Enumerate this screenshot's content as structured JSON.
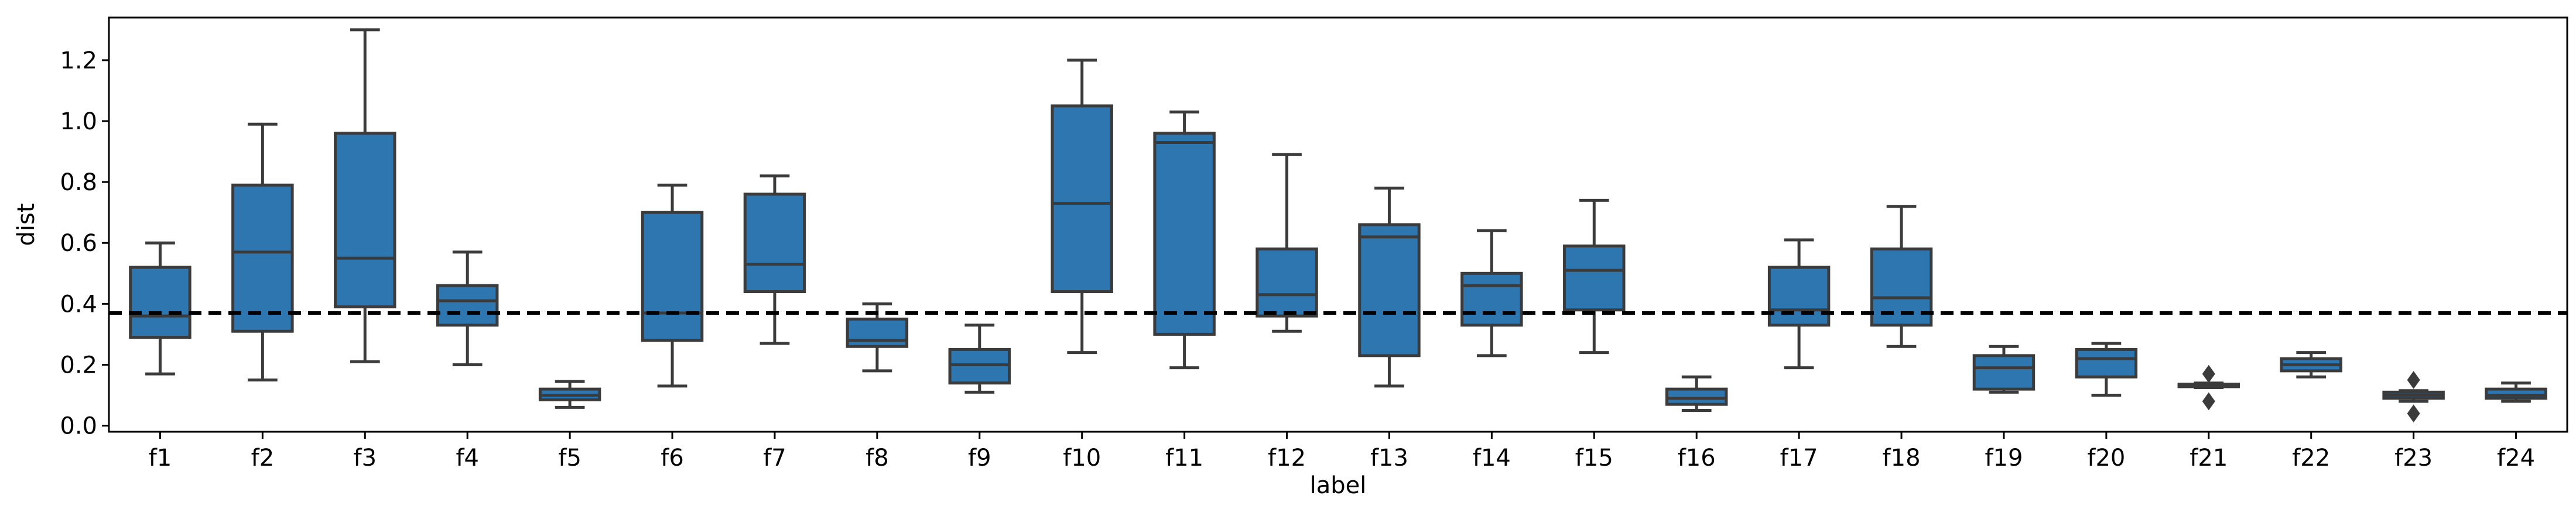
{
  "chart_data": {
    "type": "box",
    "xlabel": "label",
    "ylabel": "dist",
    "ylim": [
      -0.02,
      1.34
    ],
    "yticks": [
      0.0,
      0.2,
      0.4,
      0.6,
      0.8,
      1.0,
      1.2
    ],
    "ytick_labels": [
      "0.0",
      "0.2",
      "0.4",
      "0.6",
      "0.8",
      "1.0",
      "1.2"
    ],
    "reference_line": {
      "y": 0.37,
      "style": "dashed",
      "color": "#000000"
    },
    "box_color": "#2e76b0",
    "edge_color": "#3b3b3b",
    "categories": [
      "f1",
      "f2",
      "f3",
      "f4",
      "f5",
      "f6",
      "f7",
      "f8",
      "f9",
      "f10",
      "f11",
      "f12",
      "f13",
      "f14",
      "f15",
      "f16",
      "f17",
      "f18",
      "f19",
      "f20",
      "f21",
      "f22",
      "f23",
      "f24"
    ],
    "boxes": [
      {
        "label": "f1",
        "whislo": 0.17,
        "q1": 0.29,
        "med": 0.36,
        "q3": 0.52,
        "whishi": 0.6,
        "fliers": []
      },
      {
        "label": "f2",
        "whislo": 0.15,
        "q1": 0.31,
        "med": 0.57,
        "q3": 0.79,
        "whishi": 0.99,
        "fliers": []
      },
      {
        "label": "f3",
        "whislo": 0.21,
        "q1": 0.39,
        "med": 0.55,
        "q3": 0.96,
        "whishi": 1.3,
        "fliers": []
      },
      {
        "label": "f4",
        "whislo": 0.2,
        "q1": 0.33,
        "med": 0.41,
        "q3": 0.46,
        "whishi": 0.57,
        "fliers": []
      },
      {
        "label": "f5",
        "whislo": 0.06,
        "q1": 0.085,
        "med": 0.1,
        "q3": 0.12,
        "whishi": 0.145,
        "fliers": []
      },
      {
        "label": "f6",
        "whislo": 0.13,
        "q1": 0.28,
        "med": 0.37,
        "q3": 0.7,
        "whishi": 0.79,
        "fliers": []
      },
      {
        "label": "f7",
        "whislo": 0.27,
        "q1": 0.44,
        "med": 0.53,
        "q3": 0.76,
        "whishi": 0.82,
        "fliers": []
      },
      {
        "label": "f8",
        "whislo": 0.18,
        "q1": 0.26,
        "med": 0.28,
        "q3": 0.35,
        "whishi": 0.4,
        "fliers": []
      },
      {
        "label": "f9",
        "whislo": 0.11,
        "q1": 0.14,
        "med": 0.2,
        "q3": 0.25,
        "whishi": 0.33,
        "fliers": []
      },
      {
        "label": "f10",
        "whislo": 0.24,
        "q1": 0.44,
        "med": 0.73,
        "q3": 1.05,
        "whishi": 1.2,
        "fliers": []
      },
      {
        "label": "f11",
        "whislo": 0.19,
        "q1": 0.3,
        "med": 0.93,
        "q3": 0.96,
        "whishi": 1.03,
        "fliers": []
      },
      {
        "label": "f12",
        "whislo": 0.31,
        "q1": 0.36,
        "med": 0.43,
        "q3": 0.58,
        "whishi": 0.89,
        "fliers": []
      },
      {
        "label": "f13",
        "whislo": 0.13,
        "q1": 0.23,
        "med": 0.62,
        "q3": 0.66,
        "whishi": 0.78,
        "fliers": []
      },
      {
        "label": "f14",
        "whislo": 0.23,
        "q1": 0.33,
        "med": 0.46,
        "q3": 0.5,
        "whishi": 0.64,
        "fliers": []
      },
      {
        "label": "f15",
        "whislo": 0.24,
        "q1": 0.38,
        "med": 0.51,
        "q3": 0.59,
        "whishi": 0.74,
        "fliers": []
      },
      {
        "label": "f16",
        "whislo": 0.05,
        "q1": 0.07,
        "med": 0.09,
        "q3": 0.12,
        "whishi": 0.16,
        "fliers": []
      },
      {
        "label": "f17",
        "whislo": 0.19,
        "q1": 0.33,
        "med": 0.38,
        "q3": 0.52,
        "whishi": 0.61,
        "fliers": []
      },
      {
        "label": "f18",
        "whislo": 0.26,
        "q1": 0.33,
        "med": 0.42,
        "q3": 0.58,
        "whishi": 0.72,
        "fliers": []
      },
      {
        "label": "f19",
        "whislo": 0.11,
        "q1": 0.12,
        "med": 0.19,
        "q3": 0.23,
        "whishi": 0.26,
        "fliers": []
      },
      {
        "label": "f20",
        "whislo": 0.1,
        "q1": 0.16,
        "med": 0.22,
        "q3": 0.25,
        "whishi": 0.27,
        "fliers": []
      },
      {
        "label": "f21",
        "whislo": 0.125,
        "q1": 0.128,
        "med": 0.132,
        "q3": 0.136,
        "whishi": 0.14,
        "fliers": [
          0.08,
          0.17
        ]
      },
      {
        "label": "f22",
        "whislo": 0.16,
        "q1": 0.18,
        "med": 0.2,
        "q3": 0.22,
        "whishi": 0.24,
        "fliers": []
      },
      {
        "label": "f23",
        "whislo": 0.08,
        "q1": 0.09,
        "med": 0.1,
        "q3": 0.11,
        "whishi": 0.115,
        "fliers": [
          0.04,
          0.15
        ]
      },
      {
        "label": "f24",
        "whislo": 0.08,
        "q1": 0.09,
        "med": 0.1,
        "q3": 0.12,
        "whishi": 0.14,
        "fliers": []
      }
    ]
  }
}
